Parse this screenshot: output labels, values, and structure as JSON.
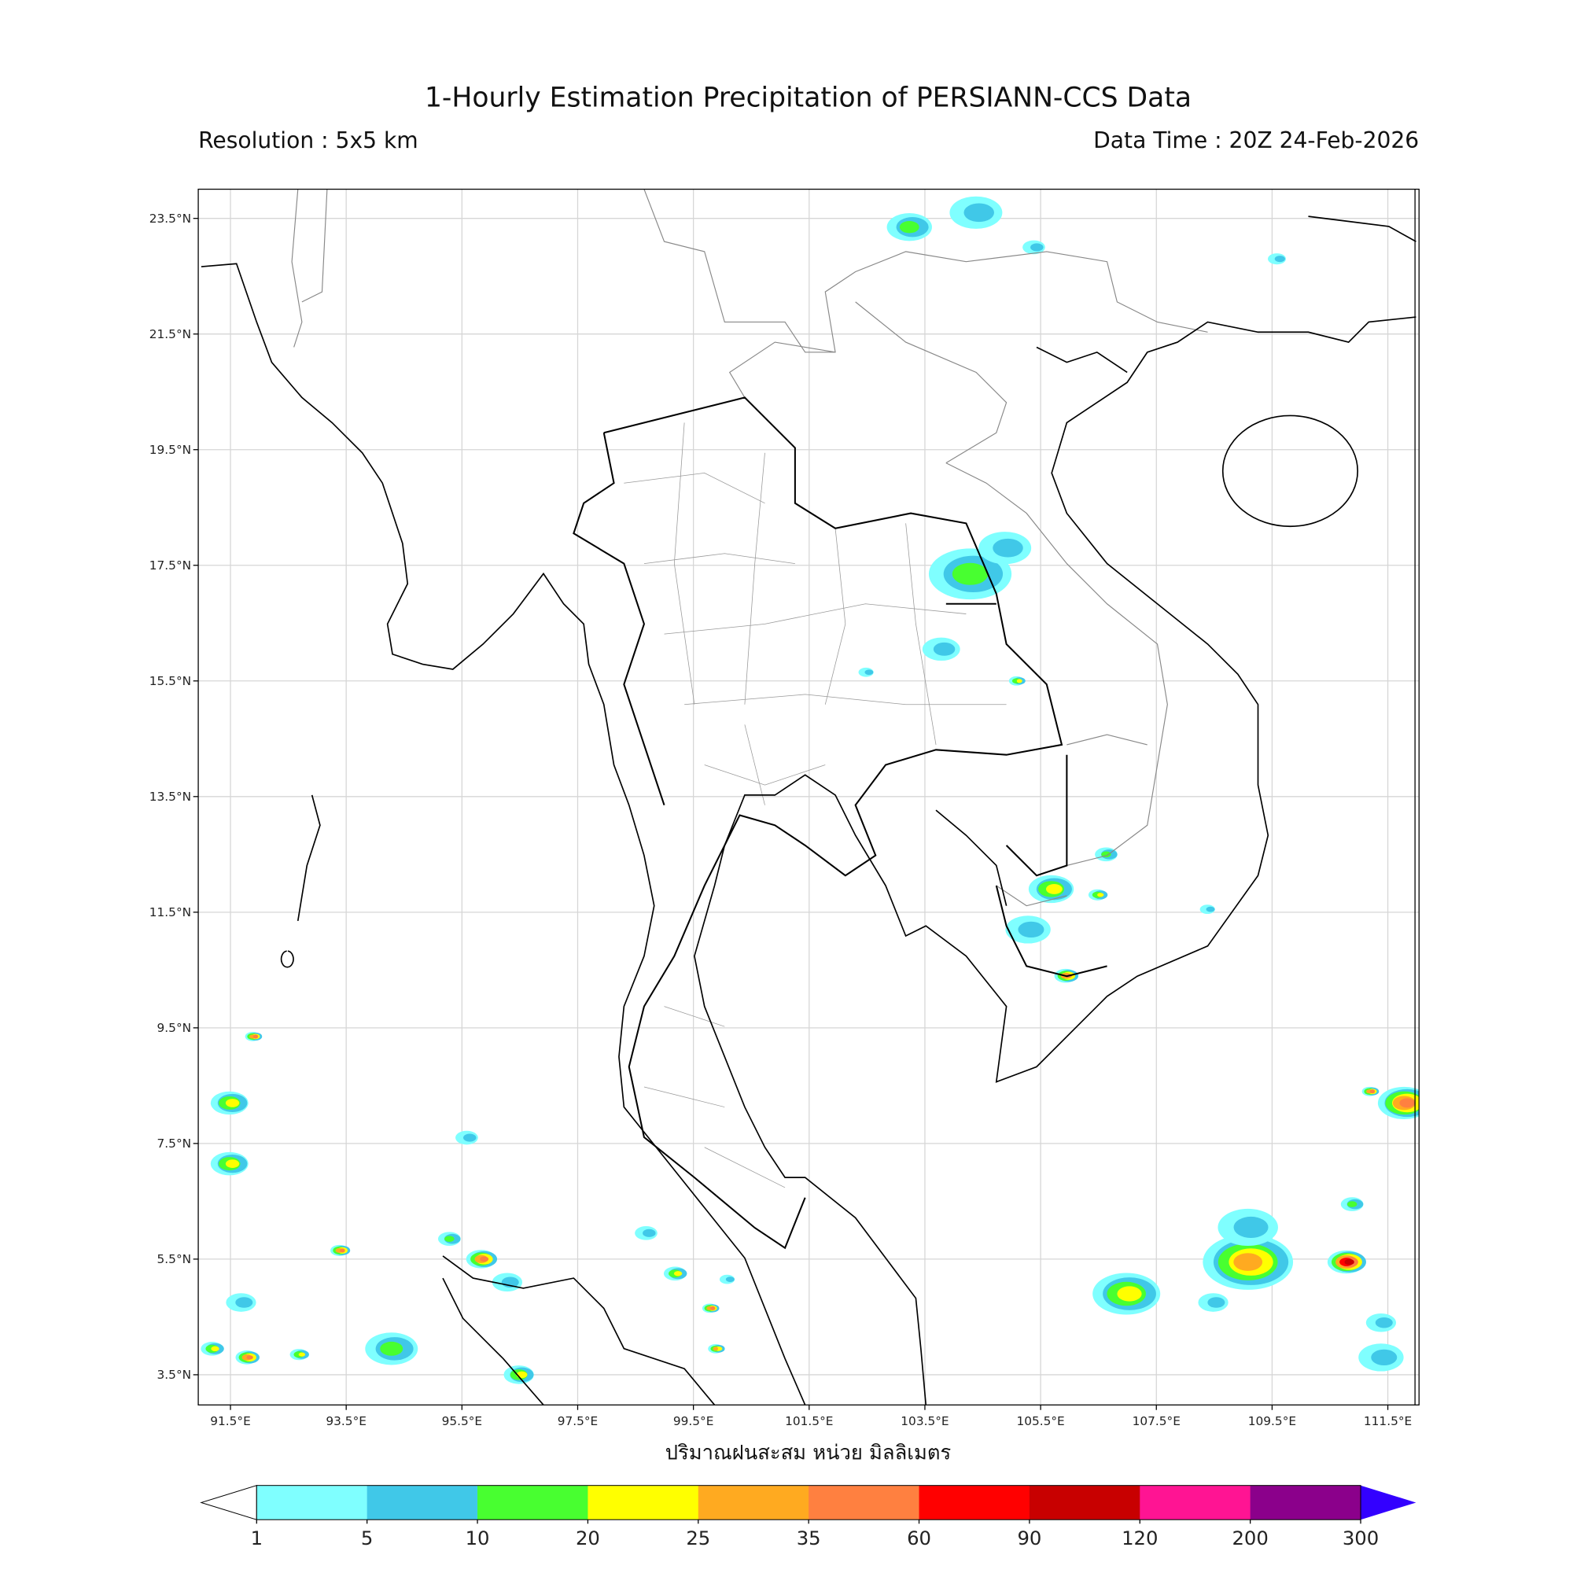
{
  "header": {
    "title": "1-Hourly Estimation Precipitation of PERSIANN-CCS Data",
    "resolution": "Resolution : 5x5 km",
    "data_time": "Data Time : 20Z 24-Feb-2026"
  },
  "map": {
    "lon_range": [
      90.94,
      112.03
    ],
    "lat_range": [
      2.97,
      24.0
    ],
    "grid": true,
    "x_ticks": [
      "91.5°E",
      "93.5°E",
      "95.5°E",
      "97.5°E",
      "99.5°E",
      "101.5°E",
      "103.5°E",
      "105.5°E",
      "107.5°E",
      "109.5°E",
      "111.5°E"
    ],
    "x_tick_values": [
      91.5,
      93.5,
      95.5,
      97.5,
      99.5,
      101.5,
      103.5,
      105.5,
      107.5,
      109.5,
      111.5
    ],
    "y_ticks": [
      "23.5°N",
      "21.5°N",
      "19.5°N",
      "17.5°N",
      "15.5°N",
      "13.5°N",
      "11.5°N",
      "9.5°N",
      "7.5°N",
      "5.5°N",
      "3.5°N"
    ],
    "y_tick_values": [
      23.5,
      21.5,
      19.5,
      17.5,
      15.5,
      13.5,
      11.5,
      9.5,
      7.5,
      5.5,
      3.5
    ],
    "xlabel": "ปริมาณฝนสะสม หน่วย มิลลิเมตร",
    "rain_cells": [
      {
        "lon": 104.3,
        "lat": 17.35,
        "level": 2,
        "size": 0.55
      },
      {
        "lon": 104.9,
        "lat": 17.8,
        "level": 1,
        "size": 0.35
      },
      {
        "lon": 103.8,
        "lat": 16.05,
        "level": 1,
        "size": 0.25
      },
      {
        "lon": 102.5,
        "lat": 15.65,
        "level": 1,
        "size": 0.1
      },
      {
        "lon": 105.1,
        "lat": 15.5,
        "level": 3,
        "size": 0.1
      },
      {
        "lon": 105.7,
        "lat": 11.9,
        "level": 3,
        "size": 0.3
      },
      {
        "lon": 105.3,
        "lat": 11.2,
        "level": 1,
        "size": 0.3
      },
      {
        "lon": 105.95,
        "lat": 10.4,
        "level": 5,
        "size": 0.15
      },
      {
        "lon": 106.65,
        "lat": 12.5,
        "level": 2,
        "size": 0.15
      },
      {
        "lon": 106.5,
        "lat": 11.8,
        "level": 3,
        "size": 0.12
      },
      {
        "lon": 109.1,
        "lat": 5.45,
        "level": 4,
        "size": 0.6
      },
      {
        "lon": 109.1,
        "lat": 6.05,
        "level": 1,
        "size": 0.4
      },
      {
        "lon": 107.0,
        "lat": 4.9,
        "level": 3,
        "size": 0.45
      },
      {
        "lon": 108.5,
        "lat": 4.75,
        "level": 1,
        "size": 0.2
      },
      {
        "lon": 111.8,
        "lat": 8.2,
        "level": 5,
        "size": 0.35
      },
      {
        "lon": 111.2,
        "lat": 8.4,
        "level": 5,
        "size": 0.1
      },
      {
        "lon": 110.8,
        "lat": 5.45,
        "level": 7,
        "size": 0.25
      },
      {
        "lon": 111.4,
        "lat": 4.4,
        "level": 1,
        "size": 0.2
      },
      {
        "lon": 111.4,
        "lat": 3.8,
        "level": 1,
        "size": 0.3
      },
      {
        "lon": 110.9,
        "lat": 6.45,
        "level": 2,
        "size": 0.15
      },
      {
        "lon": 103.25,
        "lat": 23.35,
        "level": 2,
        "size": 0.3
      },
      {
        "lon": 104.4,
        "lat": 23.6,
        "level": 1,
        "size": 0.35
      },
      {
        "lon": 105.4,
        "lat": 23.0,
        "level": 1,
        "size": 0.15
      },
      {
        "lon": 109.6,
        "lat": 22.8,
        "level": 1,
        "size": 0.12
      },
      {
        "lon": 91.5,
        "lat": 8.2,
        "level": 3,
        "size": 0.25
      },
      {
        "lon": 91.5,
        "lat": 7.15,
        "level": 3,
        "size": 0.25
      },
      {
        "lon": 91.9,
        "lat": 9.35,
        "level": 5,
        "size": 0.1
      },
      {
        "lon": 95.85,
        "lat": 5.5,
        "level": 5,
        "size": 0.2
      },
      {
        "lon": 95.3,
        "lat": 5.85,
        "level": 2,
        "size": 0.15
      },
      {
        "lon": 96.3,
        "lat": 5.1,
        "level": 1,
        "size": 0.2
      },
      {
        "lon": 99.2,
        "lat": 5.25,
        "level": 3,
        "size": 0.15
      },
      {
        "lon": 99.8,
        "lat": 4.65,
        "level": 5,
        "size": 0.1
      },
      {
        "lon": 99.9,
        "lat": 3.95,
        "level": 4,
        "size": 0.1
      },
      {
        "lon": 96.5,
        "lat": 3.5,
        "level": 3,
        "size": 0.2
      },
      {
        "lon": 94.3,
        "lat": 3.95,
        "level": 2,
        "size": 0.35
      },
      {
        "lon": 91.8,
        "lat": 3.8,
        "level": 5,
        "size": 0.15
      },
      {
        "lon": 91.2,
        "lat": 3.95,
        "level": 3,
        "size": 0.15
      },
      {
        "lon": 95.6,
        "lat": 7.6,
        "level": 1,
        "size": 0.15
      },
      {
        "lon": 93.4,
        "lat": 5.65,
        "level": 5,
        "size": 0.12
      },
      {
        "lon": 92.7,
        "lat": 3.85,
        "level": 3,
        "size": 0.12
      },
      {
        "lon": 91.7,
        "lat": 4.75,
        "level": 1,
        "size": 0.2
      },
      {
        "lon": 98.7,
        "lat": 5.95,
        "level": 1,
        "size": 0.15
      },
      {
        "lon": 100.1,
        "lat": 5.15,
        "level": 1,
        "size": 0.1
      },
      {
        "lon": 108.4,
        "lat": 11.55,
        "level": 1,
        "size": 0.1
      }
    ]
  },
  "colorbar": {
    "labels": [
      "1",
      "5",
      "10",
      "20",
      "25",
      "35",
      "60",
      "90",
      "120",
      "200",
      "300"
    ],
    "colors": [
      "#7fffff",
      "#40c8e8",
      "#48ff30",
      "#ffff00",
      "#ffaa20",
      "#ff8040",
      "#ff0000",
      "#c80000",
      "#ff1493",
      "#8b008b"
    ],
    "under_color": "#ffffff",
    "over_color": "#3300ff"
  }
}
